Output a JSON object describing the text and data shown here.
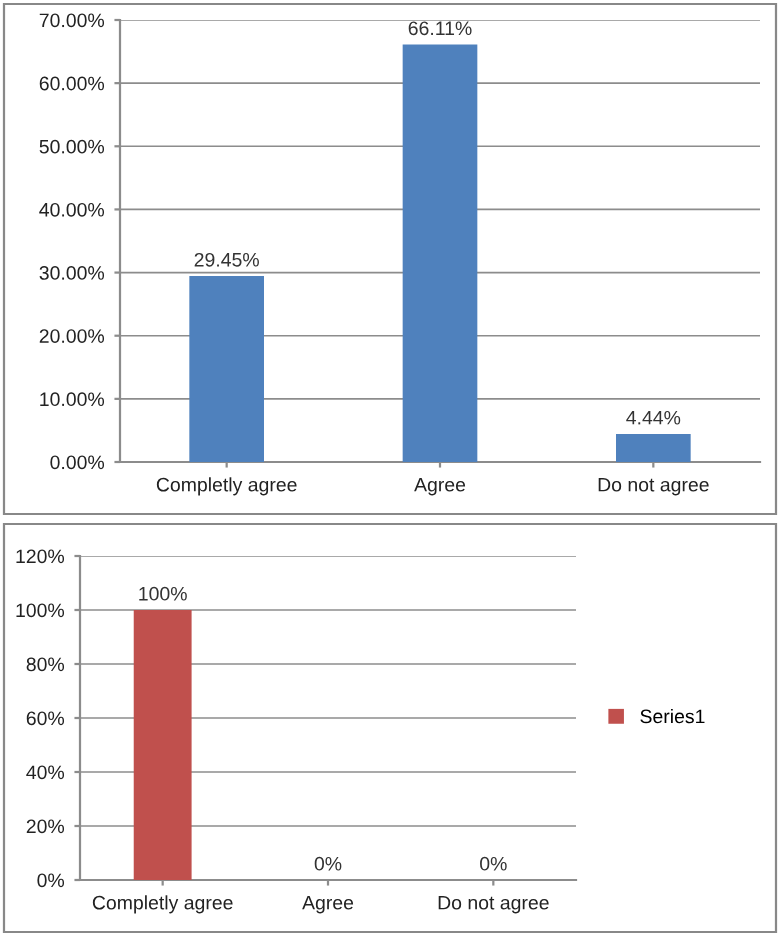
{
  "chart_data": [
    {
      "type": "bar",
      "categories": [
        "Completly agree",
        "Agree",
        "Do not agree"
      ],
      "values": [
        29.45,
        66.11,
        4.44
      ],
      "color": "#4f81bd",
      "value_labels": [
        "29.45%",
        "66.11%",
        "4.44%"
      ],
      "ylim": [
        0,
        70
      ],
      "yticks": [
        {
          "value": 0,
          "label": "0.00%"
        },
        {
          "value": 10,
          "label": "10.00%"
        },
        {
          "value": 20,
          "label": "20.00%"
        },
        {
          "value": 30,
          "label": "30.00%"
        },
        {
          "value": 40,
          "label": "40.00%"
        },
        {
          "value": 50,
          "label": "50.00%"
        },
        {
          "value": 60,
          "label": "60.00%"
        },
        {
          "value": 70,
          "label": "70.00%"
        }
      ],
      "grid": "y",
      "legend": false
    },
    {
      "type": "bar",
      "categories": [
        "Completly agree",
        "Agree",
        "Do not agree"
      ],
      "series": [
        {
          "name": "Series1",
          "color": "#c0504d",
          "values": [
            100,
            0,
            0
          ]
        }
      ],
      "value_labels": [
        "100%",
        "0%",
        "0%"
      ],
      "ylim": [
        0,
        120
      ],
      "yticks": [
        {
          "value": 0,
          "label": "0%"
        },
        {
          "value": 20,
          "label": "20%"
        },
        {
          "value": 40,
          "label": "40%"
        },
        {
          "value": 60,
          "label": "60%"
        },
        {
          "value": 80,
          "label": "80%"
        },
        {
          "value": 100,
          "label": "100%"
        },
        {
          "value": 120,
          "label": "120%"
        }
      ],
      "grid": "y",
      "legend": "right"
    }
  ]
}
